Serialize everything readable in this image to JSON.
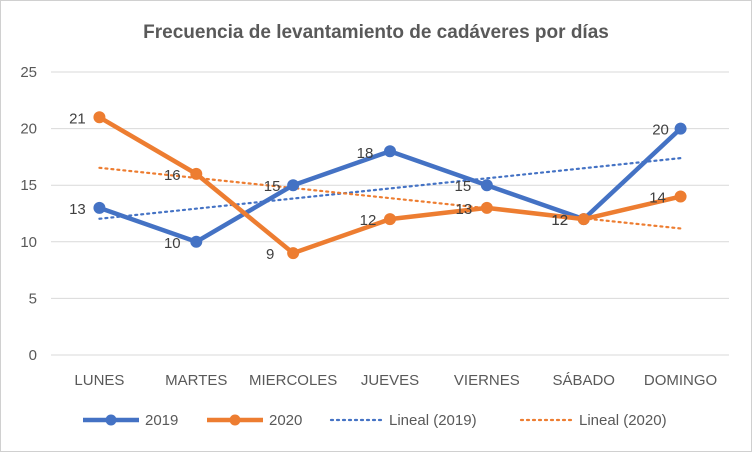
{
  "chart_data": {
    "type": "line",
    "title": "Frecuencia de levantamiento de cadáveres por días",
    "xlabel": "",
    "ylabel": "",
    "categories": [
      "LUNES",
      "MARTES",
      "MIERCOLES",
      "JUEVES",
      "VIERNES",
      "SÁBADO",
      "DOMINGO"
    ],
    "ylim": [
      0,
      25
    ],
    "yticks": [
      "0",
      "5",
      "10",
      "15",
      "20",
      "25"
    ],
    "grid": true,
    "legend_position": "bottom",
    "series": [
      {
        "name": "2019",
        "values": [
          13,
          10,
          15,
          18,
          15,
          12,
          20
        ],
        "color": "#4472c4"
      },
      {
        "name": "2020",
        "values": [
          21,
          16,
          9,
          12,
          13,
          12,
          14
        ],
        "color": "#ed7d31"
      }
    ],
    "trendlines": [
      {
        "name": "Lineal (2019)",
        "of": "2019",
        "type": "linear",
        "color": "#4472c4"
      },
      {
        "name": "Lineal (2020)",
        "of": "2020",
        "type": "linear",
        "color": "#ed7d31"
      }
    ],
    "data_labels": {
      "2019": [
        "13",
        "10",
        "15",
        "18",
        "15",
        "12",
        "20"
      ],
      "2020": [
        "21",
        "16",
        "9",
        "12",
        "13",
        "12",
        "14"
      ]
    }
  }
}
